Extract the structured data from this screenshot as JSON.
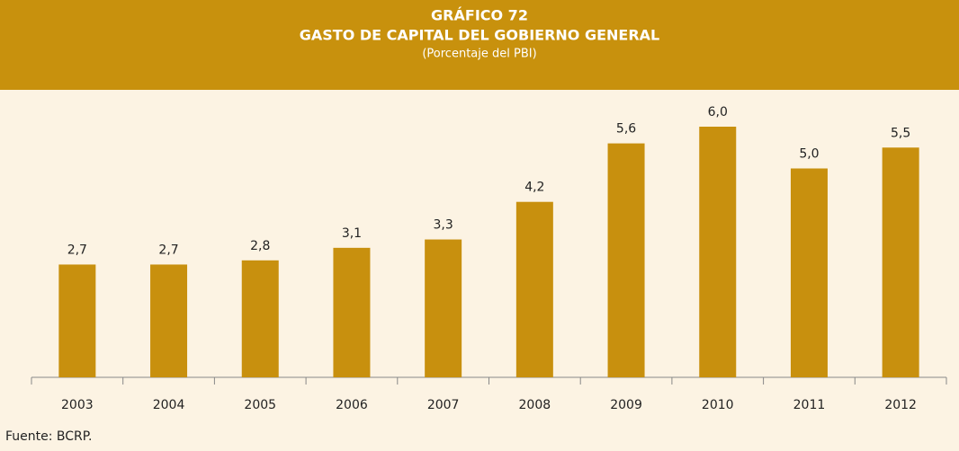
{
  "chart_data": {
    "type": "bar",
    "title": "GRÁFICO 72",
    "subtitle": "GASTO DE CAPITAL DEL GOBIERNO GENERAL",
    "unit_note": "(Porcentaje del PBI)",
    "categories": [
      "2003",
      "2004",
      "2005",
      "2006",
      "2007",
      "2008",
      "2009",
      "2010",
      "2011",
      "2012"
    ],
    "values": [
      2.7,
      2.7,
      2.8,
      3.1,
      3.3,
      4.2,
      5.6,
      6.0,
      5.0,
      5.5
    ],
    "value_labels": [
      "2,7",
      "2,7",
      "2,8",
      "3,1",
      "3,3",
      "4,2",
      "5,6",
      "6,0",
      "5,0",
      "5,5"
    ],
    "color": "#c8900e",
    "source": "Fuente: BCRP."
  }
}
